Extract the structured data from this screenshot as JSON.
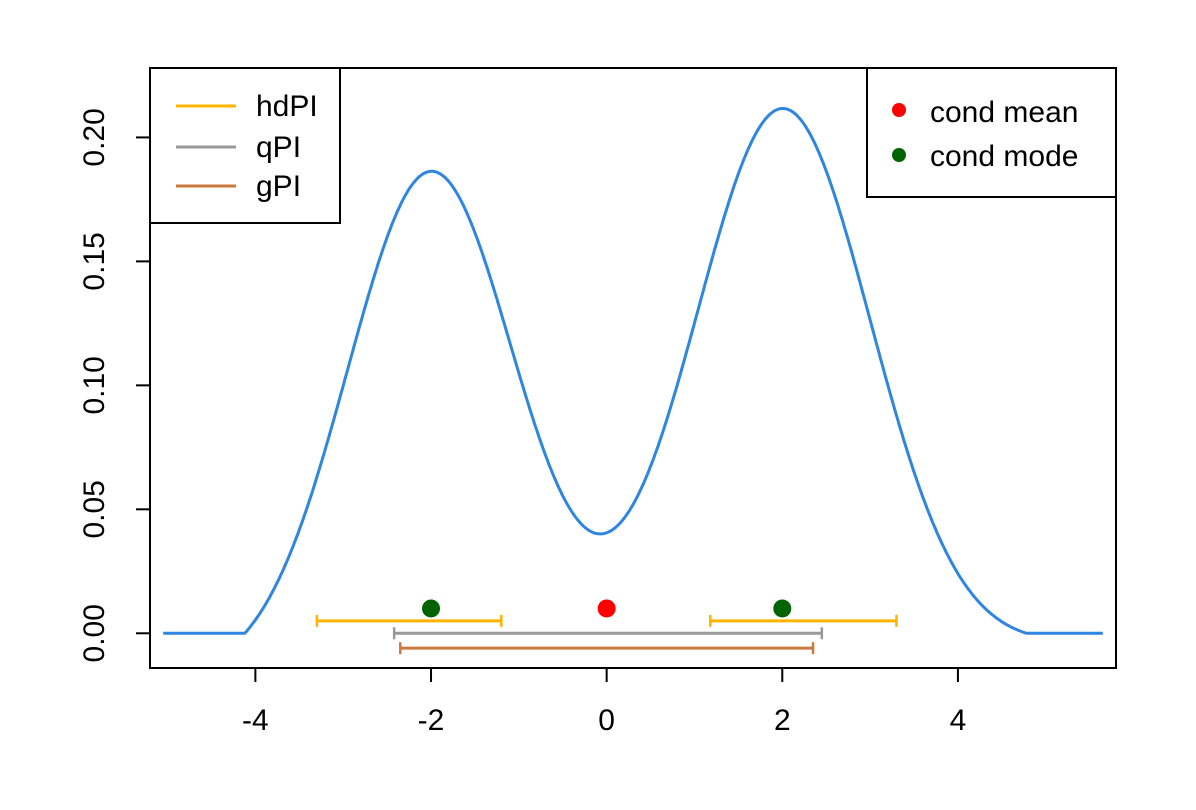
{
  "chart_data": {
    "type": "line",
    "title": "",
    "xlabel": "",
    "ylabel": "",
    "xlim": [
      -5.2,
      5.8
    ],
    "ylim": [
      -0.014,
      0.228
    ],
    "x_ticks": [
      -4,
      -2,
      0,
      2,
      4
    ],
    "x_tick_labels": [
      "-4",
      "-2",
      "0",
      "2",
      "4"
    ],
    "y_ticks": [
      0.0,
      0.05,
      0.1,
      0.15,
      0.2
    ],
    "y_tick_labels": [
      "0.00",
      "0.05",
      "0.10",
      "0.15",
      "0.20"
    ],
    "grid": false,
    "density": {
      "color": "#2e86e0",
      "support": [
        -4.12,
        4.78
      ],
      "tail_extent": [
        -5.05,
        5.65
      ],
      "components": [
        {
          "mean": -2.0,
          "sd": 0.95,
          "weight": 0.2
        },
        {
          "mean": 2.0,
          "sd": 1.0,
          "weight": 0.22
        }
      ]
    },
    "intervals": [
      {
        "name": "hdPI",
        "color": "#ffb400",
        "y": 0.005,
        "segments": [
          [
            -3.3,
            -1.2
          ],
          [
            1.18,
            3.3
          ]
        ]
      },
      {
        "name": "qPI",
        "color": "#999999",
        "y": 0.0,
        "segments": [
          [
            -2.42,
            2.45
          ]
        ]
      },
      {
        "name": "gPI",
        "color": "#cd7a3e",
        "y": -0.006,
        "segments": [
          [
            -2.35,
            2.35
          ]
        ]
      }
    ],
    "points": [
      {
        "name": "cond mean",
        "color": "#ff0000",
        "coords": [
          [
            0.0,
            0.01
          ]
        ]
      },
      {
        "name": "cond mode",
        "color": "#006400",
        "coords": [
          [
            -2.0,
            0.01
          ],
          [
            2.0,
            0.01
          ]
        ]
      }
    ],
    "legends": [
      {
        "placement": "top-left",
        "entries": [
          {
            "label": "hdPI",
            "color": "#ffb400",
            "symbol": "line"
          },
          {
            "label": "qPI",
            "color": "#999999",
            "symbol": "line"
          },
          {
            "label": "gPI",
            "color": "#cd7a3e",
            "symbol": "line"
          }
        ]
      },
      {
        "placement": "top-right",
        "entries": [
          {
            "label": "cond mean",
            "color": "#ff0000",
            "symbol": "point"
          },
          {
            "label": "cond mode",
            "color": "#006400",
            "symbol": "point"
          }
        ]
      }
    ]
  }
}
